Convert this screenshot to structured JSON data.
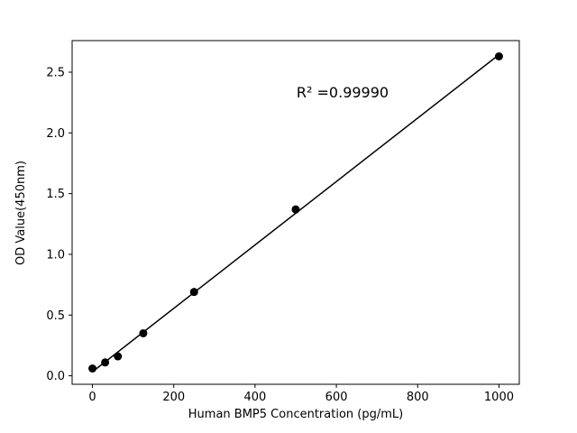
{
  "figure": {
    "background": "#ffffff"
  },
  "chart_data": {
    "type": "scatter",
    "title": "",
    "xlabel": "Human BMP5 Concentration (pg/mL)",
    "ylabel": "OD Value(450nm)",
    "annotation": "R² =0.99990",
    "x": [
      0,
      31.25,
      62.5,
      125,
      250,
      500,
      1000
    ],
    "y": [
      0.06,
      0.11,
      0.16,
      0.35,
      0.69,
      1.37,
      2.63
    ],
    "fit": {
      "slope": 0.002611,
      "intercept": 0.033,
      "r_squared": 0.9999,
      "x_start": 0,
      "x_end": 1000
    },
    "xlim": [
      -50,
      1050
    ],
    "ylim": [
      -0.07,
      2.76
    ],
    "xticks": [
      0,
      200,
      400,
      600,
      800,
      1000
    ],
    "xtick_labels": [
      "0",
      "200",
      "400",
      "600",
      "800",
      "1000"
    ],
    "yticks": [
      0.0,
      0.5,
      1.0,
      1.5,
      2.0,
      2.5
    ],
    "ytick_labels": [
      "0.0",
      "0.5",
      "1.0",
      "1.5",
      "2.0",
      "2.5"
    ],
    "grid": false,
    "legend": null,
    "marker_color": "#000000",
    "line_color": "#000000",
    "axis_color": "#000000"
  }
}
